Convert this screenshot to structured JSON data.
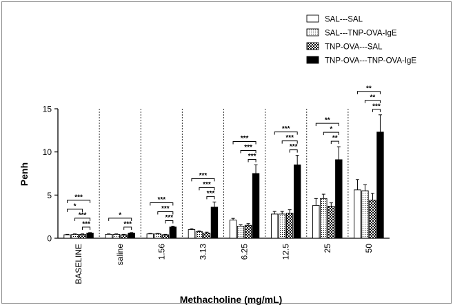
{
  "chart_data": {
    "type": "bar",
    "title": "",
    "xlabel": "Methacholine (mg/mL)",
    "ylabel": "Penh",
    "ylim": [
      0,
      15
    ],
    "yticks": [
      "0",
      "5",
      "10",
      "15"
    ],
    "grid": false,
    "legend_position": "top-right",
    "categories": [
      "BASELINE",
      "saline",
      "1.56",
      "3.13",
      "6.25",
      "12.5",
      "25",
      "50"
    ],
    "series": [
      {
        "name": "SAL---SAL",
        "pattern": "white",
        "values": [
          0.4,
          0.45,
          0.5,
          1.0,
          2.1,
          2.8,
          3.8,
          5.6
        ],
        "errors": [
          0.05,
          0.05,
          0.05,
          0.1,
          0.2,
          0.3,
          0.8,
          1.2
        ]
      },
      {
        "name": "SAL---TNP-OVA-IgE",
        "pattern": "dotted",
        "values": [
          0.45,
          0.45,
          0.5,
          0.75,
          1.4,
          2.8,
          4.6,
          5.5
        ],
        "errors": [
          0.05,
          0.05,
          0.05,
          0.1,
          0.15,
          0.3,
          0.5,
          0.7
        ]
      },
      {
        "name": "TNP-OVA---SAL",
        "pattern": "checkered",
        "values": [
          0.45,
          0.4,
          0.4,
          0.6,
          1.5,
          2.9,
          3.7,
          4.4
        ],
        "errors": [
          0.05,
          0.05,
          0.05,
          0.1,
          0.2,
          0.4,
          0.4,
          0.8
        ]
      },
      {
        "name": "TNP-OVA---TNP-OVA-IgE",
        "pattern": "black",
        "values": [
          0.6,
          0.6,
          1.3,
          3.6,
          7.5,
          8.5,
          9.1,
          12.3
        ],
        "errors": [
          0.05,
          0.05,
          0.1,
          0.6,
          1.0,
          1.1,
          1.5,
          2.0
        ]
      }
    ],
    "significance": [
      {
        "category": "BASELINE",
        "brackets": [
          {
            "from": 0,
            "to": 3,
            "label": "***"
          },
          {
            "from": 1,
            "to": 3,
            "label": "***"
          },
          {
            "from": 0,
            "to": 2,
            "label": "*"
          },
          {
            "from": 2,
            "to": 3,
            "label": "***"
          }
        ]
      },
      {
        "category": "saline",
        "brackets": [
          {
            "from": 0,
            "to": 3,
            "label": "*"
          },
          {
            "from": 2,
            "to": 3,
            "label": "***"
          }
        ]
      },
      {
        "category": "1.56",
        "brackets": [
          {
            "from": 0,
            "to": 3,
            "label": "***"
          },
          {
            "from": 1,
            "to": 3,
            "label": "***"
          },
          {
            "from": 2,
            "to": 3,
            "label": "***"
          }
        ]
      },
      {
        "category": "3.13",
        "brackets": [
          {
            "from": 0,
            "to": 3,
            "label": "***"
          },
          {
            "from": 1,
            "to": 3,
            "label": "***"
          },
          {
            "from": 2,
            "to": 3,
            "label": "***"
          }
        ]
      },
      {
        "category": "6.25",
        "brackets": [
          {
            "from": 0,
            "to": 3,
            "label": "***"
          },
          {
            "from": 1,
            "to": 3,
            "label": "***"
          },
          {
            "from": 2,
            "to": 3,
            "label": "***"
          }
        ]
      },
      {
        "category": "12.5",
        "brackets": [
          {
            "from": 0,
            "to": 3,
            "label": "***"
          },
          {
            "from": 1,
            "to": 3,
            "label": "***"
          },
          {
            "from": 2,
            "to": 3,
            "label": "***"
          }
        ]
      },
      {
        "category": "25",
        "brackets": [
          {
            "from": 0,
            "to": 3,
            "label": "**"
          },
          {
            "from": 1,
            "to": 3,
            "label": "*"
          },
          {
            "from": 2,
            "to": 3,
            "label": "**"
          }
        ]
      },
      {
        "category": "50",
        "brackets": [
          {
            "from": 0,
            "to": 3,
            "label": "**"
          },
          {
            "from": 1,
            "to": 3,
            "label": "**"
          },
          {
            "from": 2,
            "to": 3,
            "label": "***"
          }
        ]
      }
    ]
  }
}
